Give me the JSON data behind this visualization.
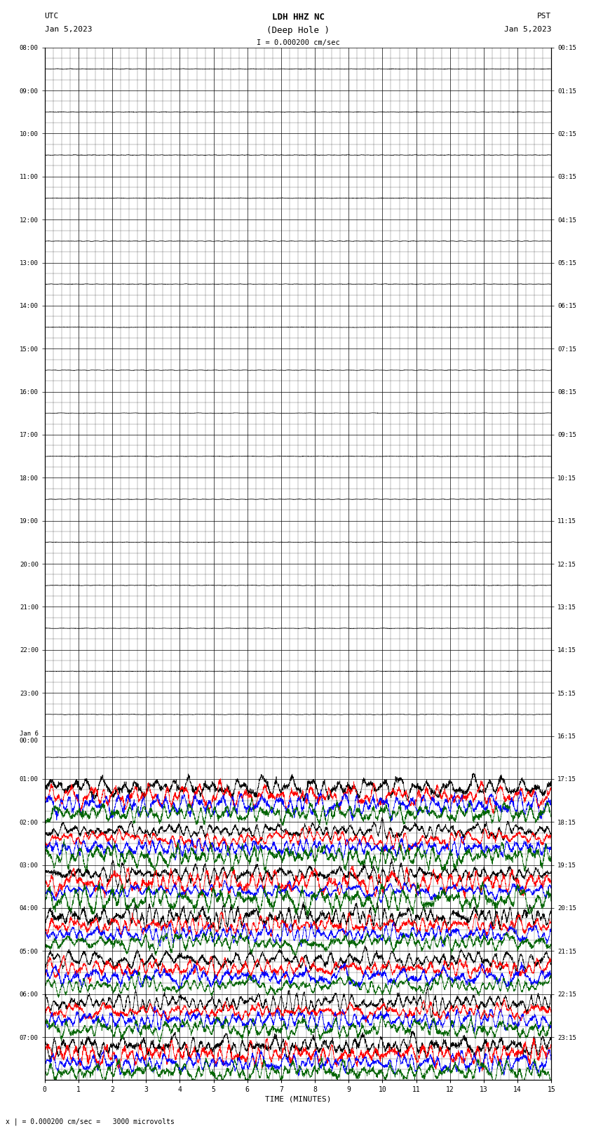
{
  "title_line1": "LDH HHZ NC",
  "title_line2": "(Deep Hole )",
  "scale_label": "I = 0.000200 cm/sec",
  "utc_label": "UTC",
  "utc_date": "Jan 5,2023",
  "pst_label": "PST",
  "pst_date": "Jan 5,2023",
  "bottom_label": "x | = 0.000200 cm/sec =   3000 microvolts",
  "xlabel": "TIME (MINUTES)",
  "left_ticks": [
    "08:00",
    "09:00",
    "10:00",
    "11:00",
    "12:00",
    "13:00",
    "14:00",
    "15:00",
    "16:00",
    "17:00",
    "18:00",
    "19:00",
    "20:00",
    "21:00",
    "22:00",
    "23:00",
    "Jan 6\n00:00",
    "01:00",
    "02:00",
    "03:00",
    "04:00",
    "05:00",
    "06:00",
    "07:00"
  ],
  "right_ticks": [
    "00:15",
    "01:15",
    "02:15",
    "03:15",
    "04:15",
    "05:15",
    "06:15",
    "07:15",
    "08:15",
    "09:15",
    "10:15",
    "11:15",
    "12:15",
    "13:15",
    "14:15",
    "15:15",
    "16:15",
    "17:15",
    "18:15",
    "19:15",
    "20:15",
    "21:15",
    "22:15",
    "23:15"
  ],
  "num_rows": 24,
  "upper_rows": 17,
  "lower_rows": 7,
  "x_ticks": [
    0,
    1,
    2,
    3,
    4,
    5,
    6,
    7,
    8,
    9,
    10,
    11,
    12,
    13,
    14,
    15
  ],
  "bg_color": "#ffffff",
  "grid_color": "#000000",
  "trace_colors": [
    "#000000",
    "#ff0000",
    "#0000ff",
    "#006400"
  ],
  "seed": 42
}
